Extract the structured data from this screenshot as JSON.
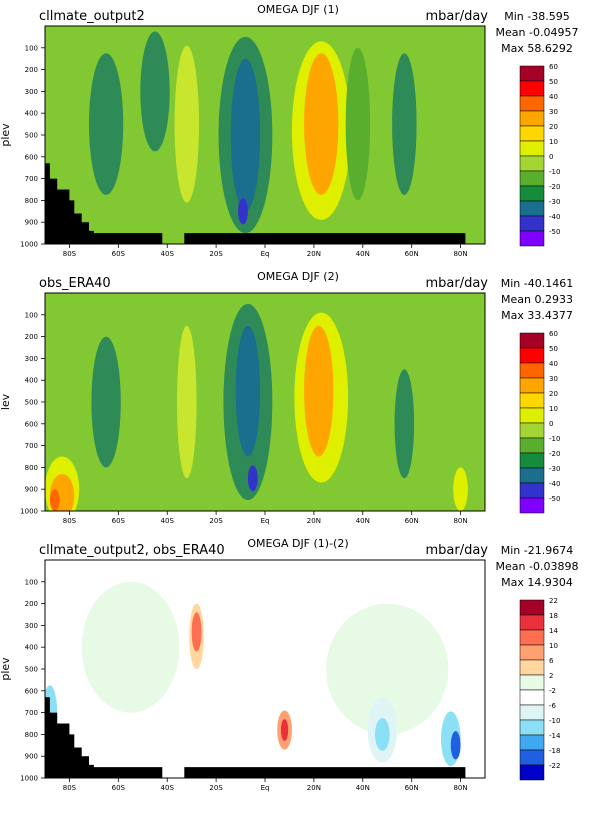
{
  "chart_data": [
    {
      "type": "heatmap",
      "left_label": "cllmate_output2",
      "title": "OMEGA DJF (1)",
      "units": "mbar/day",
      "ylabel": "plev",
      "stats": {
        "min": "Min -38.595",
        "mean": "Mean -0.04957",
        "max": "Max 58.6292"
      },
      "x_ticks": [
        "80S",
        "60S",
        "40S",
        "20S",
        "Eq",
        "20N",
        "40N",
        "60N",
        "80N"
      ],
      "x_tick_values": [
        -80,
        -60,
        -40,
        -20,
        0,
        20,
        40,
        60,
        80
      ],
      "xlim": [
        -90,
        90
      ],
      "y_ticks": [
        "100",
        "200",
        "300",
        "400",
        "500",
        "600",
        "700",
        "800",
        "900",
        "1000"
      ],
      "y_tick_values": [
        100,
        200,
        300,
        400,
        500,
        600,
        700,
        800,
        900,
        1000
      ],
      "ylim": [
        0,
        1000
      ],
      "colorbar_levels": [
        "60",
        "50",
        "40",
        "30",
        "20",
        "10",
        "0",
        "-10",
        "-20",
        "-30",
        "-40",
        "-50"
      ],
      "colorbar_colors": [
        "#a50026",
        "#ff0000",
        "#ff6600",
        "#ffa500",
        "#ffd700",
        "#dfef00",
        "#a3d634",
        "#5aae2e",
        "#148c3c",
        "#1a6e8e",
        "#3333cc",
        "#8000ff"
      ],
      "background_color": "#82c832",
      "fields": [
        {
          "lat": -65,
          "plev": 450,
          "wlat": 7,
          "wp": 650,
          "color": "#2e8b57"
        },
        {
          "lat": -45,
          "plev": 300,
          "wlat": 6,
          "wp": 550,
          "color": "#2e8b57"
        },
        {
          "lat": -32,
          "plev": 450,
          "wlat": 5,
          "wp": 720,
          "color": "#c8e62d"
        },
        {
          "lat": -8,
          "plev": 500,
          "wlat": 11,
          "wp": 900,
          "color": "#2e8b57"
        },
        {
          "lat": -8,
          "plev": 500,
          "wlat": 6,
          "wp": 700,
          "color": "#1a6e8e"
        },
        {
          "lat": -9,
          "plev": 850,
          "wlat": 2,
          "wp": 120,
          "color": "#3333cc"
        },
        {
          "lat": 23,
          "plev": 480,
          "wlat": 12,
          "wp": 820,
          "color": "#dfef00"
        },
        {
          "lat": 23,
          "plev": 450,
          "wlat": 7,
          "wp": 650,
          "color": "#ffa500"
        },
        {
          "lat": 57,
          "plev": 450,
          "wlat": 5,
          "wp": 650,
          "color": "#2e8b57"
        },
        {
          "lat": 38,
          "plev": 450,
          "wlat": 5,
          "wp": 700,
          "color": "#5aae2e"
        }
      ],
      "terrain": [
        [
          -90,
          630
        ],
        [
          -88,
          630
        ],
        [
          -88,
          700
        ],
        [
          -85,
          700
        ],
        [
          -85,
          750
        ],
        [
          -80,
          750
        ],
        [
          -80,
          800
        ],
        [
          -78,
          800
        ],
        [
          -78,
          860
        ],
        [
          -75,
          860
        ],
        [
          -75,
          900
        ],
        [
          -72,
          900
        ],
        [
          -72,
          940
        ],
        [
          -70,
          940
        ],
        [
          -70,
          950
        ],
        [
          -42,
          950
        ],
        [
          -42,
          1000
        ],
        [
          -33,
          1000
        ],
        [
          -33,
          950
        ],
        [
          82,
          950
        ],
        [
          82,
          1000
        ],
        [
          -90,
          1000
        ]
      ]
    },
    {
      "type": "heatmap",
      "left_label": "obs_ERA40",
      "title": "OMEGA DJF (2)",
      "units": "mbar/day",
      "ylabel": "lev",
      "stats": {
        "min": "Min -40.1461",
        "mean": "Mean 0.2933",
        "max": "Max 33.4377"
      },
      "x_ticks": [
        "80S",
        "60S",
        "40S",
        "20S",
        "Eq",
        "20N",
        "40N",
        "60N",
        "80N"
      ],
      "x_tick_values": [
        -80,
        -60,
        -40,
        -20,
        0,
        20,
        40,
        60,
        80
      ],
      "xlim": [
        -90,
        90
      ],
      "y_ticks": [
        "100",
        "200",
        "300",
        "400",
        "500",
        "600",
        "700",
        "800",
        "900",
        "1000"
      ],
      "y_tick_values": [
        100,
        200,
        300,
        400,
        500,
        600,
        700,
        800,
        900,
        1000
      ],
      "ylim": [
        0,
        1000
      ],
      "colorbar_levels": [
        "60",
        "50",
        "40",
        "30",
        "20",
        "10",
        "0",
        "-10",
        "-20",
        "-30",
        "-40",
        "-50"
      ],
      "colorbar_colors": [
        "#a50026",
        "#ff0000",
        "#ff6600",
        "#ffa500",
        "#ffd700",
        "#dfef00",
        "#a3d634",
        "#5aae2e",
        "#148c3c",
        "#1a6e8e",
        "#3333cc",
        "#8000ff"
      ],
      "background_color": "#82c832",
      "fields": [
        {
          "lat": -65,
          "plev": 500,
          "wlat": 6,
          "wp": 600,
          "color": "#2e8b57"
        },
        {
          "lat": -32,
          "plev": 500,
          "wlat": 4,
          "wp": 700,
          "color": "#c8e62d"
        },
        {
          "lat": -7,
          "plev": 500,
          "wlat": 10,
          "wp": 900,
          "color": "#2e8b57"
        },
        {
          "lat": -7,
          "plev": 450,
          "wlat": 5,
          "wp": 600,
          "color": "#1a6e8e"
        },
        {
          "lat": -5,
          "plev": 850,
          "wlat": 2,
          "wp": 120,
          "color": "#3333cc"
        },
        {
          "lat": 23,
          "plev": 480,
          "wlat": 11,
          "wp": 780,
          "color": "#dfef00"
        },
        {
          "lat": 22,
          "plev": 450,
          "wlat": 6,
          "wp": 600,
          "color": "#ffa500"
        },
        {
          "lat": 57,
          "plev": 600,
          "wlat": 4,
          "wp": 500,
          "color": "#2e8b57"
        },
        {
          "lat": -83,
          "plev": 900,
          "wlat": 7,
          "wp": 300,
          "color": "#dfef00"
        },
        {
          "lat": -83,
          "plev": 930,
          "wlat": 5,
          "wp": 200,
          "color": "#ffa500"
        },
        {
          "lat": -86,
          "plev": 950,
          "wlat": 2,
          "wp": 100,
          "color": "#ff6600"
        },
        {
          "lat": 80,
          "plev": 900,
          "wlat": 3,
          "wp": 200,
          "color": "#dfef00"
        }
      ],
      "terrain": []
    },
    {
      "type": "heatmap",
      "left_label": "cllmate_output2, obs_ERA40",
      "title": "OMEGA DJF (1)-(2)",
      "units": "mbar/day",
      "ylabel": "plev",
      "stats": {
        "min": "Min -21.9674",
        "mean": "Mean -0.03898",
        "max": "Max 14.9304"
      },
      "x_ticks": [
        "80S",
        "60S",
        "40S",
        "20S",
        "Eq",
        "20N",
        "40N",
        "60N",
        "80N"
      ],
      "x_tick_values": [
        -80,
        -60,
        -40,
        -20,
        0,
        20,
        40,
        60,
        80
      ],
      "xlim": [
        -90,
        90
      ],
      "y_ticks": [
        "100",
        "200",
        "300",
        "400",
        "500",
        "600",
        "700",
        "800",
        "900",
        "1000"
      ],
      "y_tick_values": [
        100,
        200,
        300,
        400,
        500,
        600,
        700,
        800,
        900,
        1000
      ],
      "ylim": [
        0,
        1000
      ],
      "colorbar_levels": [
        "22",
        "18",
        "14",
        "10",
        "6",
        "2",
        "-2",
        "-6",
        "-10",
        "-14",
        "-18",
        "-22"
      ],
      "colorbar_colors": [
        "#a50026",
        "#e8313b",
        "#ff6e50",
        "#ffa070",
        "#ffd6a0",
        "#e6fae6",
        "#ffffff",
        "#dff5f5",
        "#8ce0f5",
        "#40a8f0",
        "#2060e0",
        "#0000c8"
      ],
      "background_color": "#ffffff",
      "fields": [
        {
          "lat": -55,
          "plev": 400,
          "wlat": 20,
          "wp": 600,
          "color": "#e6fae6"
        },
        {
          "lat": 50,
          "plev": 500,
          "wlat": 25,
          "wp": 600,
          "color": "#e6fae6"
        },
        {
          "lat": -28,
          "plev": 350,
          "wlat": 3,
          "wp": 300,
          "color": "#ffd6a0"
        },
        {
          "lat": -28,
          "plev": 330,
          "wlat": 2,
          "wp": 180,
          "color": "#ff6e50"
        },
        {
          "lat": 8,
          "plev": 780,
          "wlat": 3,
          "wp": 180,
          "color": "#ffa070"
        },
        {
          "lat": 8,
          "plev": 780,
          "wlat": 1.5,
          "wp": 100,
          "color": "#e8313b"
        },
        {
          "lat": 48,
          "plev": 780,
          "wlat": 6,
          "wp": 300,
          "color": "#dff5f5"
        },
        {
          "lat": 48,
          "plev": 800,
          "wlat": 3,
          "wp": 150,
          "color": "#8ce0f5"
        },
        {
          "lat": 76,
          "plev": 820,
          "wlat": 4,
          "wp": 250,
          "color": "#8ce0f5"
        },
        {
          "lat": 78,
          "plev": 850,
          "wlat": 2,
          "wp": 130,
          "color": "#2060e0"
        },
        {
          "lat": -88,
          "plev": 700,
          "wlat": 3,
          "wp": 250,
          "color": "#8ce0f5"
        }
      ],
      "terrain": [
        [
          -90,
          630
        ],
        [
          -88,
          630
        ],
        [
          -88,
          700
        ],
        [
          -85,
          700
        ],
        [
          -85,
          750
        ],
        [
          -80,
          750
        ],
        [
          -80,
          800
        ],
        [
          -78,
          800
        ],
        [
          -78,
          860
        ],
        [
          -75,
          860
        ],
        [
          -75,
          900
        ],
        [
          -72,
          900
        ],
        [
          -72,
          940
        ],
        [
          -70,
          940
        ],
        [
          -70,
          950
        ],
        [
          -42,
          950
        ],
        [
          -42,
          1000
        ],
        [
          -33,
          1000
        ],
        [
          -33,
          950
        ],
        [
          82,
          950
        ],
        [
          82,
          1000
        ],
        [
          -90,
          1000
        ]
      ]
    }
  ]
}
